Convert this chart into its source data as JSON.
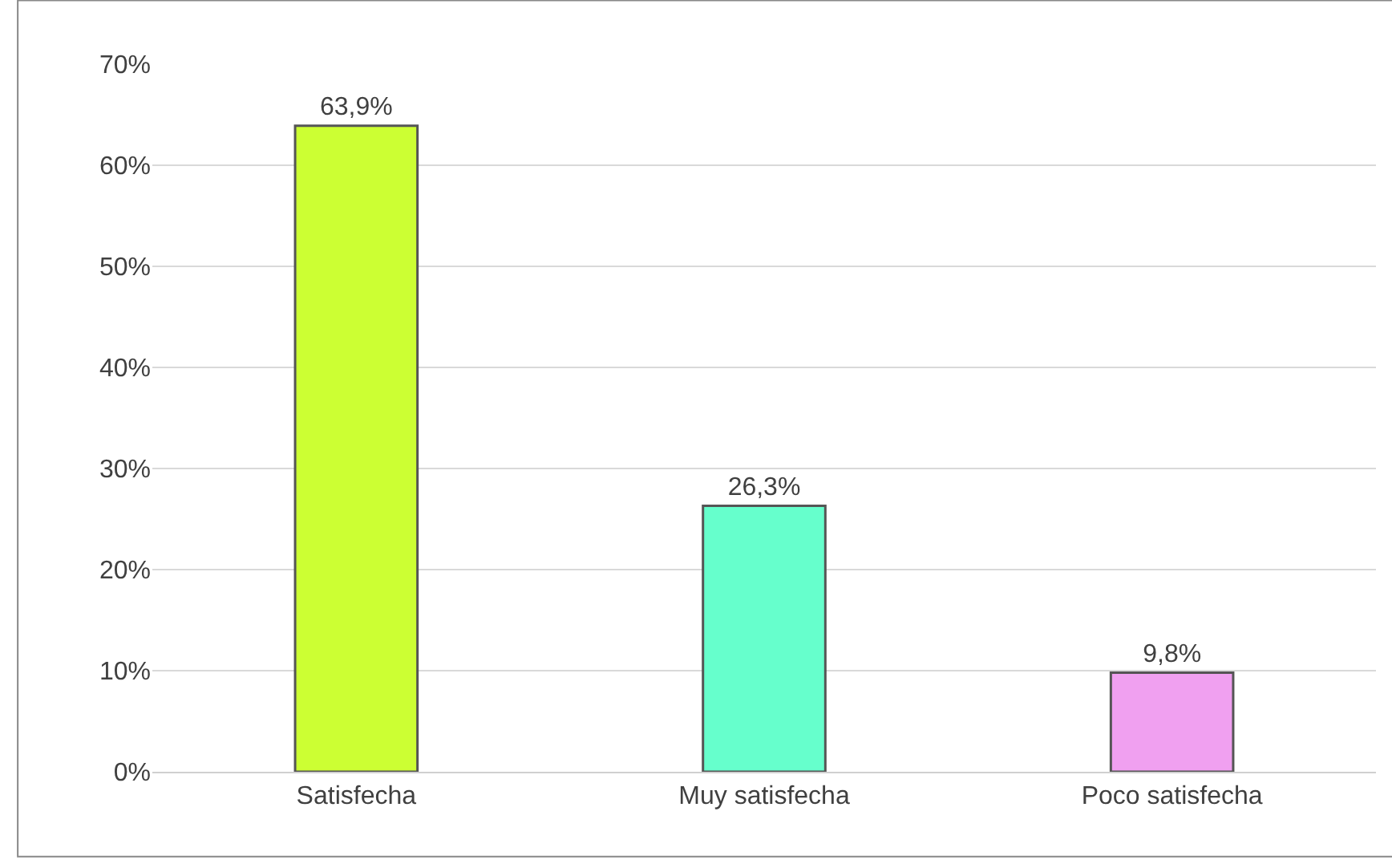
{
  "chart_data": {
    "type": "bar",
    "categories": [
      "Satisfecha",
      "Muy satisfecha",
      "Poco satisfecha"
    ],
    "values": [
      63.9,
      26.3,
      9.8
    ],
    "colors": [
      "#ccff33",
      "#66ffcc",
      "#f0a0f0"
    ],
    "value_labels": [
      "63,9%",
      "26,3%",
      "9,8%"
    ],
    "ylim": [
      0,
      70
    ],
    "yticks": [
      {
        "value": 0,
        "label": "0%"
      },
      {
        "value": 10,
        "label": "10%"
      },
      {
        "value": 20,
        "label": "20%"
      },
      {
        "value": 30,
        "label": "30%"
      },
      {
        "value": 40,
        "label": "40%"
      },
      {
        "value": 50,
        "label": "50%"
      },
      {
        "value": 60,
        "label": "60%"
      },
      {
        "value": 70,
        "label": "70%"
      }
    ],
    "grid": "y",
    "legend": false
  }
}
